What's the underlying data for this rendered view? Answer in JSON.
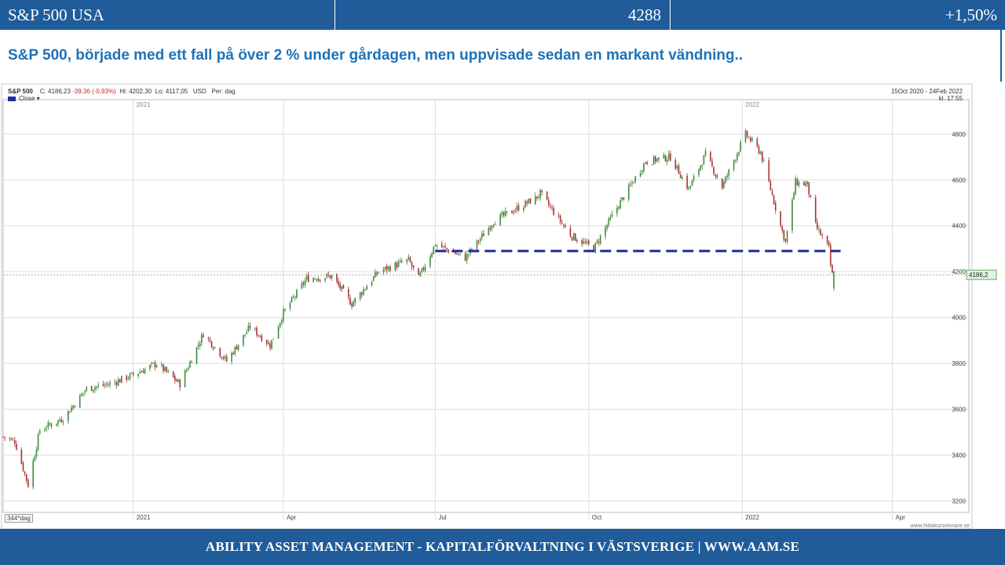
{
  "topbar": {
    "index_name": "S&P 500 USA",
    "price": "4288",
    "change": "+1,50%"
  },
  "headline": "S&P 500, började med ett fall på över 2 % under gårdagen, men uppvisade sedan en markant vändning..",
  "chart_header": {
    "symbol": "S&P 500",
    "close": "C: 4186,23",
    "change": "-39,36 (-0,93%)",
    "high": "Hi: 4202,30",
    "low": "Lo: 4117,05",
    "currency": "USD",
    "period": "Per: dag",
    "legend": "Close",
    "range": "15Oct 2020 - 24Feb 2022",
    "time": "kl. 17:55",
    "bars": "344*dag",
    "watermark": "www.hittakursvinnare.se"
  },
  "footer": "ABILITY ASSET MANAGEMENT -  KAPITALFÖRVALTNING I VÄSTSVERIGE   |   WWW.AAM.SE",
  "colors": {
    "brand": "#1f5c99",
    "headline": "#1f72b8",
    "up": "#3c8c3c",
    "down": "#a83232",
    "support": "#1c2a9c"
  },
  "chart_data": {
    "type": "candlestick",
    "x_start": "2020-10-15",
    "x_end": "2022-02-24",
    "ylim": [
      3150,
      4950
    ],
    "yticks": [
      3200,
      3400,
      3600,
      3800,
      4000,
      4200,
      4400,
      4600,
      4800
    ],
    "xticks_top": [
      {
        "date": "2021-01-01",
        "label": "2021"
      },
      {
        "date": "2022-01-01",
        "label": "2022"
      }
    ],
    "xticks_bottom": [
      {
        "date": "2021-01-01",
        "label": "2021"
      },
      {
        "date": "2021-04-01",
        "label": "Apr"
      },
      {
        "date": "2021-07-01",
        "label": "Jul"
      },
      {
        "date": "2021-10-01",
        "label": "Oct"
      },
      {
        "date": "2022-01-01",
        "label": "2022"
      },
      {
        "date": "2022-04-01",
        "label": "Apr"
      }
    ],
    "x_axis_end": "2022-05-15",
    "last_price": 4186.23,
    "last_price_label": "4186,2",
    "support_level": {
      "value": 4290,
      "from": "2021-07-01",
      "to": "2022-03-01"
    },
    "close_path": [
      [
        "2020-10-15",
        3480
      ],
      [
        "2020-10-22",
        3460
      ],
      [
        "2020-10-30",
        3270
      ],
      [
        "2020-11-06",
        3510
      ],
      [
        "2020-11-20",
        3560
      ],
      [
        "2020-12-04",
        3690
      ],
      [
        "2020-12-18",
        3710
      ],
      [
        "2021-01-01",
        3750
      ],
      [
        "2021-01-15",
        3800
      ],
      [
        "2021-01-29",
        3710
      ],
      [
        "2021-02-12",
        3930
      ],
      [
        "2021-02-26",
        3810
      ],
      [
        "2021-03-12",
        3960
      ],
      [
        "2021-03-24",
        3880
      ],
      [
        "2021-04-01",
        4020
      ],
      [
        "2021-04-15",
        4170
      ],
      [
        "2021-04-30",
        4180
      ],
      [
        "2021-05-12",
        4060
      ],
      [
        "2021-05-28",
        4200
      ],
      [
        "2021-06-15",
        4250
      ],
      [
        "2021-06-21",
        4170
      ],
      [
        "2021-07-01",
        4320
      ],
      [
        "2021-07-19",
        4260
      ],
      [
        "2021-08-05",
        4420
      ],
      [
        "2021-08-30",
        4520
      ],
      [
        "2021-09-02",
        4540
      ],
      [
        "2021-09-20",
        4360
      ],
      [
        "2021-10-04",
        4300
      ],
      [
        "2021-10-18",
        4480
      ],
      [
        "2021-11-04",
        4680
      ],
      [
        "2021-11-19",
        4700
      ],
      [
        "2021-11-30",
        4560
      ],
      [
        "2021-12-10",
        4710
      ],
      [
        "2021-12-20",
        4570
      ],
      [
        "2022-01-03",
        4800
      ],
      [
        "2022-01-12",
        4720
      ],
      [
        "2022-01-24",
        4400
      ],
      [
        "2022-01-27",
        4330
      ],
      [
        "2022-02-02",
        4590
      ],
      [
        "2022-02-09",
        4580
      ],
      [
        "2022-02-14",
        4400
      ],
      [
        "2022-02-18",
        4350
      ],
      [
        "2022-02-22",
        4300
      ],
      [
        "2022-02-23",
        4225
      ],
      [
        "2022-02-24",
        4186
      ]
    ]
  }
}
